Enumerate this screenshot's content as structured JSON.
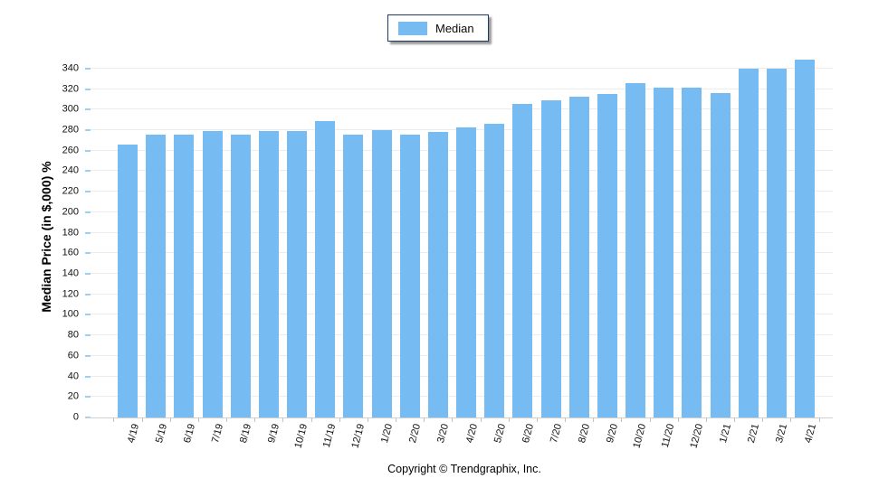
{
  "legend": {
    "label": "Median",
    "swatch_color": "#76bbf2"
  },
  "footer": {
    "copyright": "Copyright © Trendgraphix, Inc."
  },
  "chart_data": {
    "type": "bar",
    "title": "",
    "xlabel": "",
    "ylabel": "Median Price (in $,000) %",
    "categories": [
      "4/19",
      "5/19",
      "6/19",
      "7/19",
      "8/19",
      "9/19",
      "10/19",
      "11/19",
      "12/19",
      "1/20",
      "2/20",
      "3/20",
      "4/20",
      "5/20",
      "6/20",
      "7/20",
      "8/20",
      "9/20",
      "10/20",
      "11/20",
      "12/20",
      "1/21",
      "2/21",
      "3/21",
      "4/21"
    ],
    "series": [
      {
        "name": "Median",
        "values": [
          266,
          276,
          276,
          279,
          276,
          279,
          279,
          289,
          276,
          280,
          276,
          278,
          283,
          286,
          306,
          309,
          313,
          315,
          326,
          321,
          321,
          316,
          340,
          340,
          349
        ]
      }
    ],
    "ylim": [
      0,
      340
    ],
    "ytick_step": 20,
    "yticks": [
      0,
      20,
      40,
      60,
      80,
      100,
      120,
      140,
      160,
      180,
      200,
      220,
      240,
      260,
      280,
      300,
      320,
      340
    ],
    "grid": true,
    "legend_position": "top-center",
    "bar_color": "#76bbf2",
    "ymax_render": 354
  }
}
